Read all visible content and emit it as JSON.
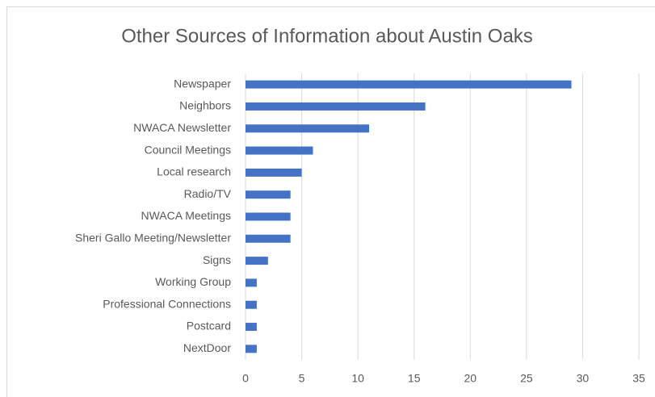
{
  "chart_data": {
    "type": "hbar",
    "title": "Other Sources of Information about Austin Oaks",
    "categories": [
      "Newspaper",
      "Neighbors",
      "NWACA Newsletter",
      "Council Meetings",
      "Local research",
      "Radio/TV",
      "NWACA Meetings",
      "Sheri Gallo Meeting/Newsletter",
      "Signs",
      "Working Group",
      "Professional Connections",
      "Postcard",
      "NextDoor"
    ],
    "values": [
      29,
      16,
      11,
      6,
      5,
      4,
      4,
      4,
      2,
      1,
      1,
      1,
      1
    ],
    "color": "#4472c4",
    "xlim": [
      0,
      35
    ],
    "xticks": [
      0,
      5,
      10,
      15,
      20,
      25,
      30,
      35
    ],
    "grid": true
  }
}
